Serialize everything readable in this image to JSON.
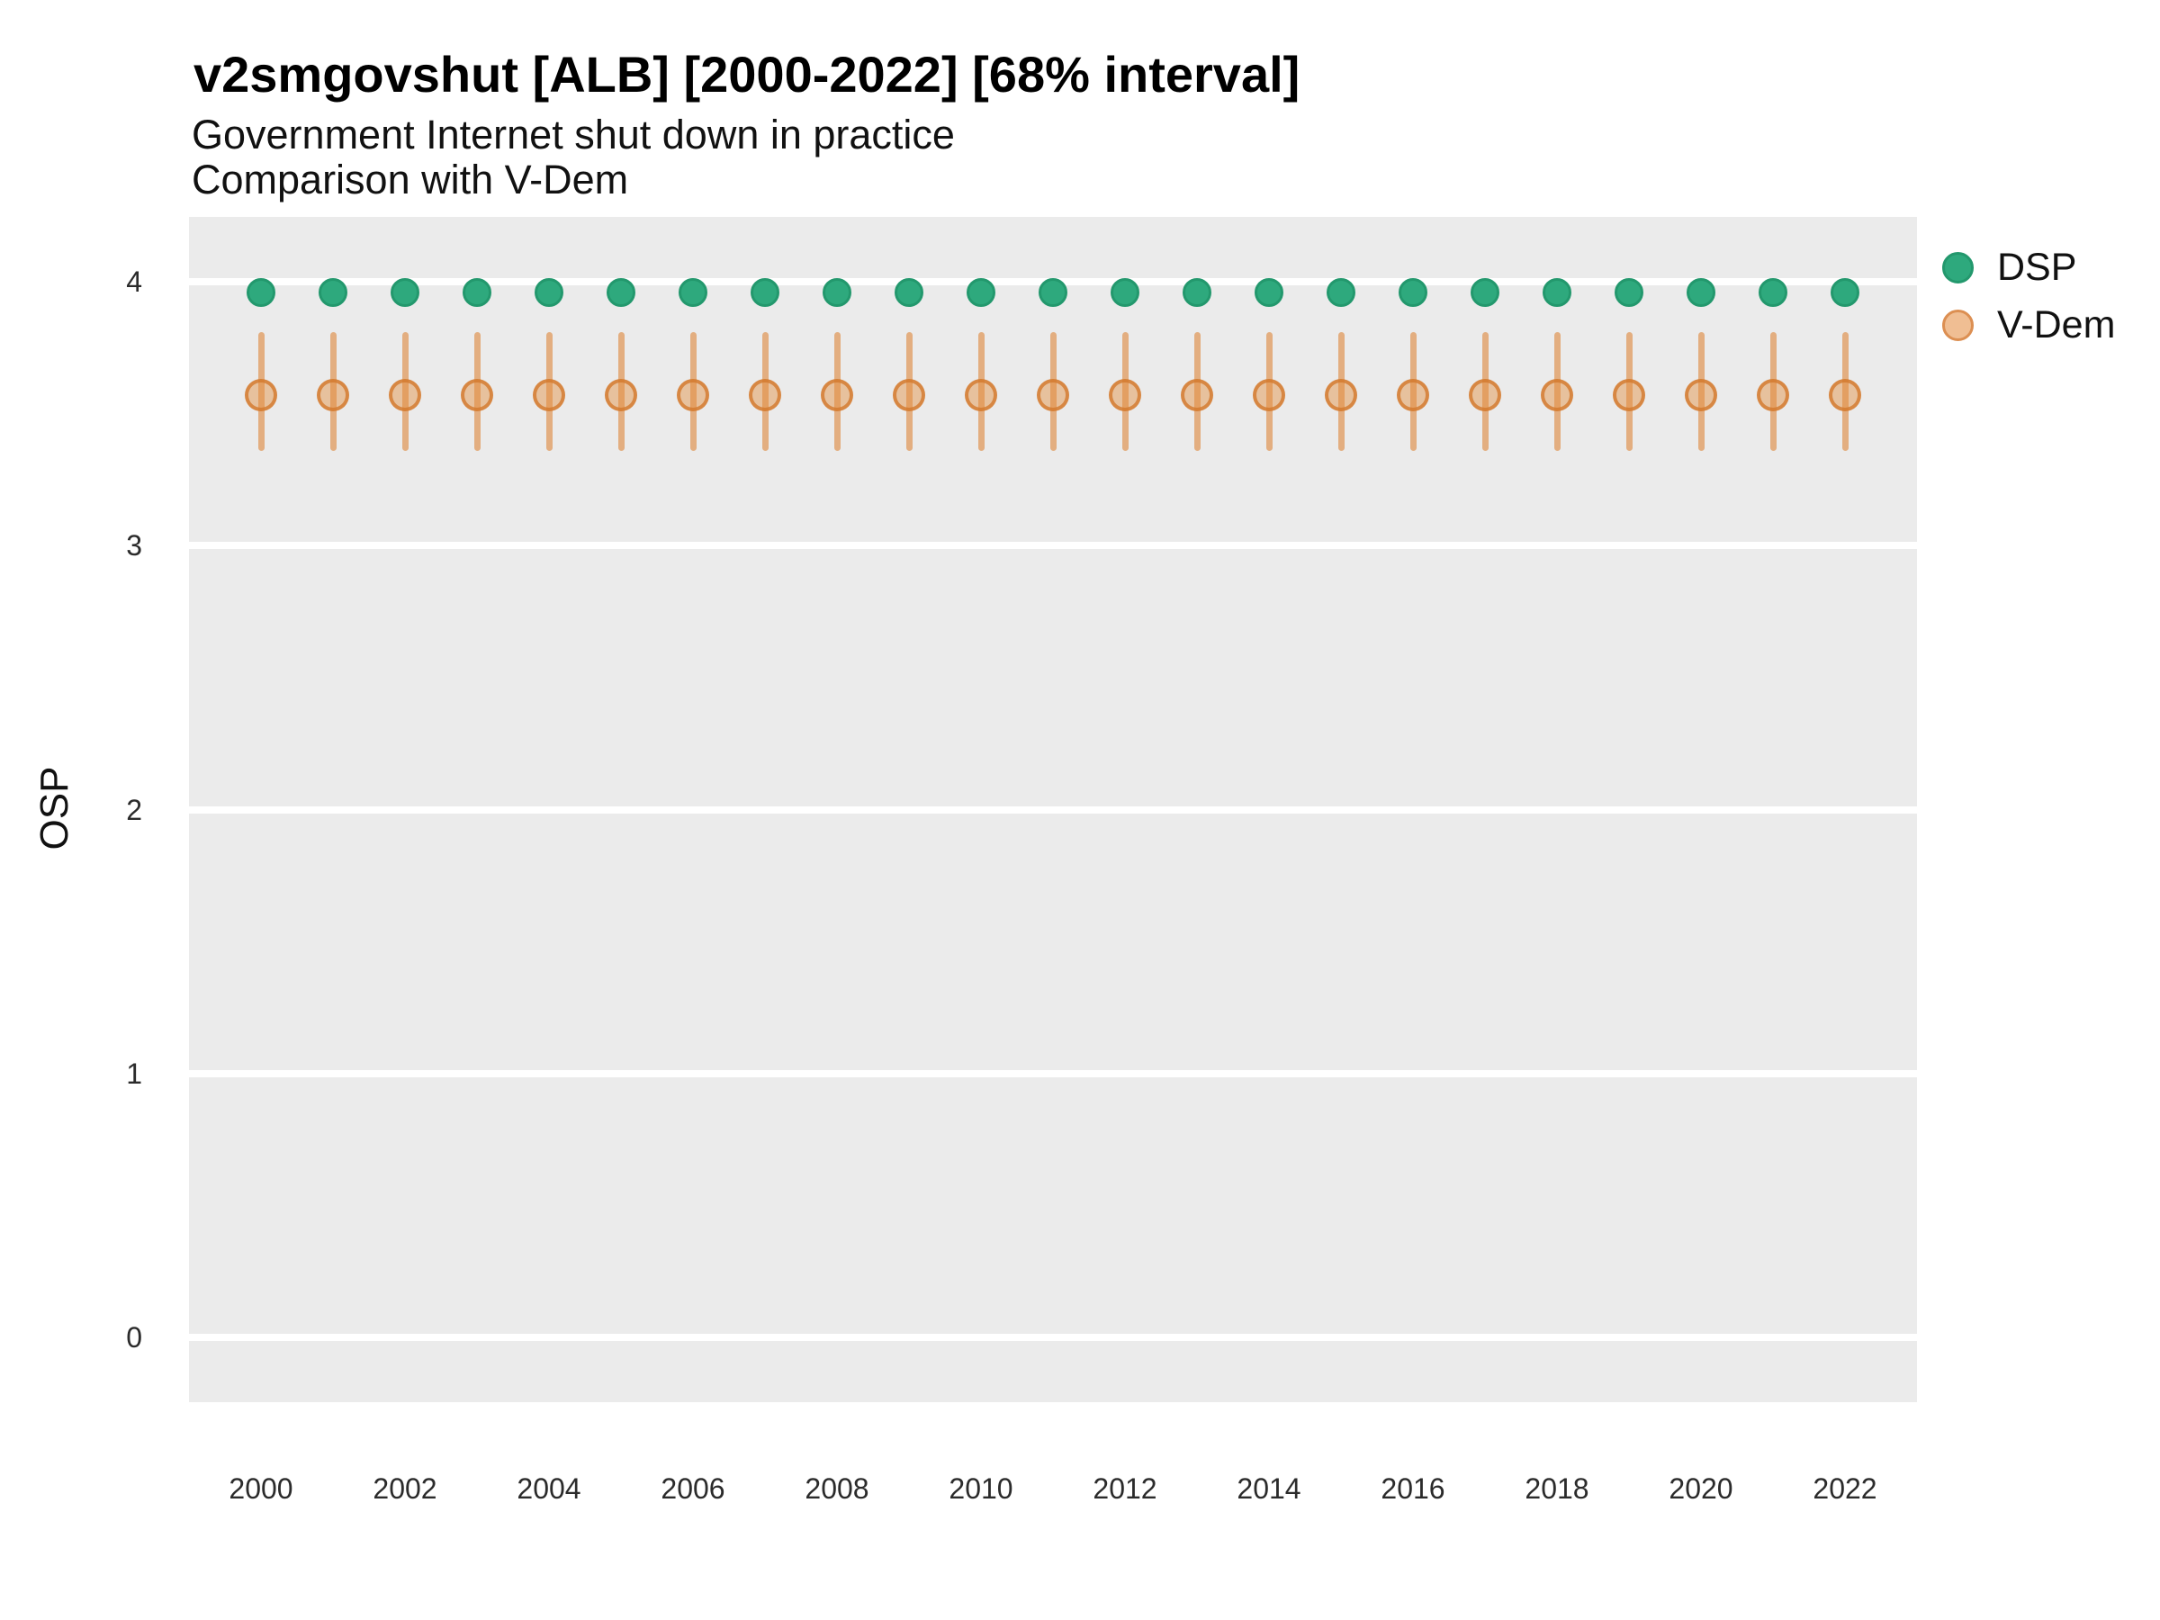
{
  "header": {
    "title": "v2smgovshut [ALB] [2000-2022] [68% interval]",
    "subtitle_line1": "Government Internet shut down in practice",
    "subtitle_line2": "Comparison with V-Dem"
  },
  "y_axis": {
    "label": "OSP"
  },
  "legend": {
    "items": [
      {
        "label": "DSP",
        "fill": "#2EA97D",
        "border": "#23986D"
      },
      {
        "label": "V-Dem",
        "fill": "#F0BE93",
        "border": "#DC8F52"
      }
    ]
  },
  "colors": {
    "panel_background": "#EBEBEB",
    "gridline": "#FFFFFF",
    "dsp_fill": "#2EA97D",
    "dsp_border": "#23986D",
    "vdem_bar": "rgba(221,133,56,0.6)",
    "vdem_fill": "rgba(226,142,62,0.45)",
    "vdem_border": "rgba(211,120,45,0.8)"
  },
  "chart_data": {
    "type": "scatter",
    "title": "v2smgovshut [ALB] [2000-2022] [68% interval]",
    "subtitle": [
      "Government Internet shut down in practice",
      "Comparison with V-Dem"
    ],
    "xlabel": "",
    "ylabel": "OSP",
    "interval": "68%",
    "x": [
      2000,
      2001,
      2002,
      2003,
      2004,
      2005,
      2006,
      2007,
      2008,
      2009,
      2010,
      2011,
      2012,
      2013,
      2014,
      2015,
      2016,
      2017,
      2018,
      2019,
      2020,
      2021,
      2022
    ],
    "series": [
      {
        "name": "DSP",
        "values": [
          3.96,
          3.96,
          3.96,
          3.96,
          3.96,
          3.96,
          3.96,
          3.96,
          3.96,
          3.96,
          3.96,
          3.96,
          3.96,
          3.96,
          3.96,
          3.96,
          3.96,
          3.96,
          3.96,
          3.96,
          3.96,
          3.96,
          3.96
        ]
      },
      {
        "name": "V-Dem",
        "values": [
          3.57,
          3.57,
          3.57,
          3.57,
          3.57,
          3.57,
          3.57,
          3.57,
          3.57,
          3.57,
          3.57,
          3.57,
          3.57,
          3.57,
          3.57,
          3.57,
          3.57,
          3.57,
          3.57,
          3.57,
          3.57,
          3.57,
          3.57
        ],
        "interval_low": [
          3.36,
          3.36,
          3.36,
          3.36,
          3.36,
          3.36,
          3.36,
          3.36,
          3.36,
          3.36,
          3.36,
          3.36,
          3.36,
          3.36,
          3.36,
          3.36,
          3.36,
          3.36,
          3.36,
          3.36,
          3.36,
          3.36,
          3.36
        ],
        "interval_high": [
          3.81,
          3.81,
          3.81,
          3.81,
          3.81,
          3.81,
          3.81,
          3.81,
          3.81,
          3.81,
          3.81,
          3.81,
          3.81,
          3.81,
          3.81,
          3.81,
          3.81,
          3.81,
          3.81,
          3.81,
          3.81,
          3.81,
          3.81
        ]
      }
    ],
    "xlim": [
      1999,
      2023
    ],
    "ylim": [
      -0.246,
      4.246
    ],
    "yticks": [
      0,
      1,
      2,
      3,
      4
    ],
    "xticks": [
      2000,
      2002,
      2004,
      2006,
      2008,
      2010,
      2012,
      2014,
      2016,
      2018,
      2020,
      2022
    ],
    "grid": "horizontal major gridlines, white on gray panel",
    "legend_position": "right-top-outside"
  }
}
